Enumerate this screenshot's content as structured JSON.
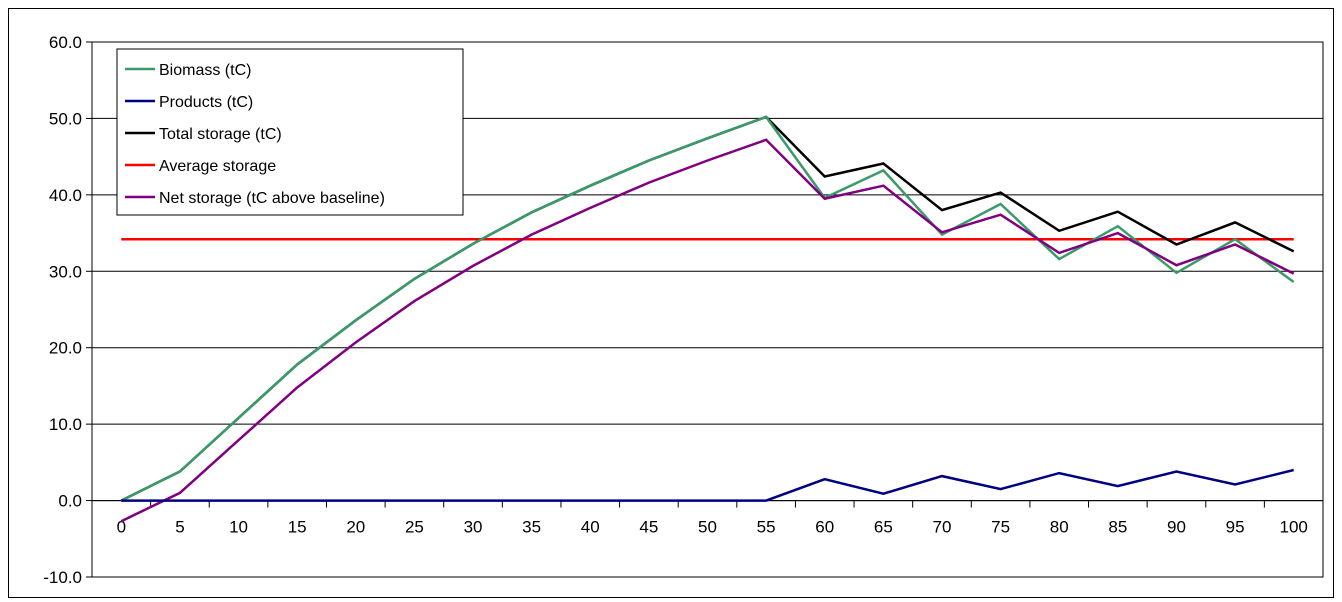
{
  "chart_data": {
    "type": "line",
    "x": [
      0,
      5,
      10,
      15,
      20,
      25,
      30,
      35,
      40,
      45,
      50,
      55,
      60,
      65,
      70,
      75,
      80,
      85,
      90,
      95,
      100
    ],
    "ylim": [
      -10,
      60
    ],
    "yticks": [
      "-10.0",
      "0.0",
      "10.0",
      "20.0",
      "30.0",
      "40.0",
      "50.0",
      "60.0"
    ],
    "ytick_values": [
      -10,
      0,
      10,
      20,
      30,
      40,
      50,
      60
    ],
    "xticks": [
      "0",
      "5",
      "10",
      "15",
      "20",
      "25",
      "30",
      "35",
      "40",
      "45",
      "50",
      "55",
      "60",
      "65",
      "70",
      "75",
      "80",
      "85",
      "90",
      "95",
      "100"
    ],
    "grid": "horizontal",
    "legend_position": "top-left",
    "series": [
      {
        "name": "Biomass (tC)",
        "color": "#3a9a6a",
        "values": [
          0.0,
          3.8,
          10.8,
          17.8,
          23.6,
          29.0,
          33.6,
          37.7,
          41.2,
          44.5,
          47.4,
          50.2,
          39.6,
          43.2,
          34.8,
          38.8,
          31.6,
          35.9,
          29.8,
          34.2,
          28.6
        ]
      },
      {
        "name": "Products (tC)",
        "color": "#000080",
        "values": [
          0,
          0,
          0,
          0,
          0,
          0,
          0,
          0,
          0,
          0,
          0,
          0,
          2.8,
          0.9,
          3.2,
          1.5,
          3.6,
          1.9,
          3.8,
          2.1,
          4.0
        ]
      },
      {
        "name": "Total storage (tC)",
        "color": "#000000",
        "values": [
          0.0,
          3.8,
          10.8,
          17.8,
          23.6,
          29.0,
          33.6,
          37.7,
          41.2,
          44.5,
          47.4,
          50.2,
          42.4,
          44.1,
          38.0,
          40.3,
          35.3,
          37.8,
          33.5,
          36.4,
          32.6
        ]
      },
      {
        "name": "Average storage",
        "color": "#ff0000",
        "values": [
          34.2,
          34.2,
          34.2,
          34.2,
          34.2,
          34.2,
          34.2,
          34.2,
          34.2,
          34.2,
          34.2,
          34.2,
          34.2,
          34.2,
          34.2,
          34.2,
          34.2,
          34.2,
          34.2,
          34.2,
          34.2
        ]
      },
      {
        "name": "Net storage (tC above baseline)",
        "color": "#800080",
        "values": [
          -2.7,
          1.0,
          7.9,
          14.8,
          20.7,
          26.1,
          30.7,
          34.8,
          38.3,
          41.6,
          44.5,
          47.2,
          39.5,
          41.2,
          35.1,
          37.4,
          32.4,
          35.0,
          30.8,
          33.5,
          29.7
        ]
      }
    ]
  }
}
